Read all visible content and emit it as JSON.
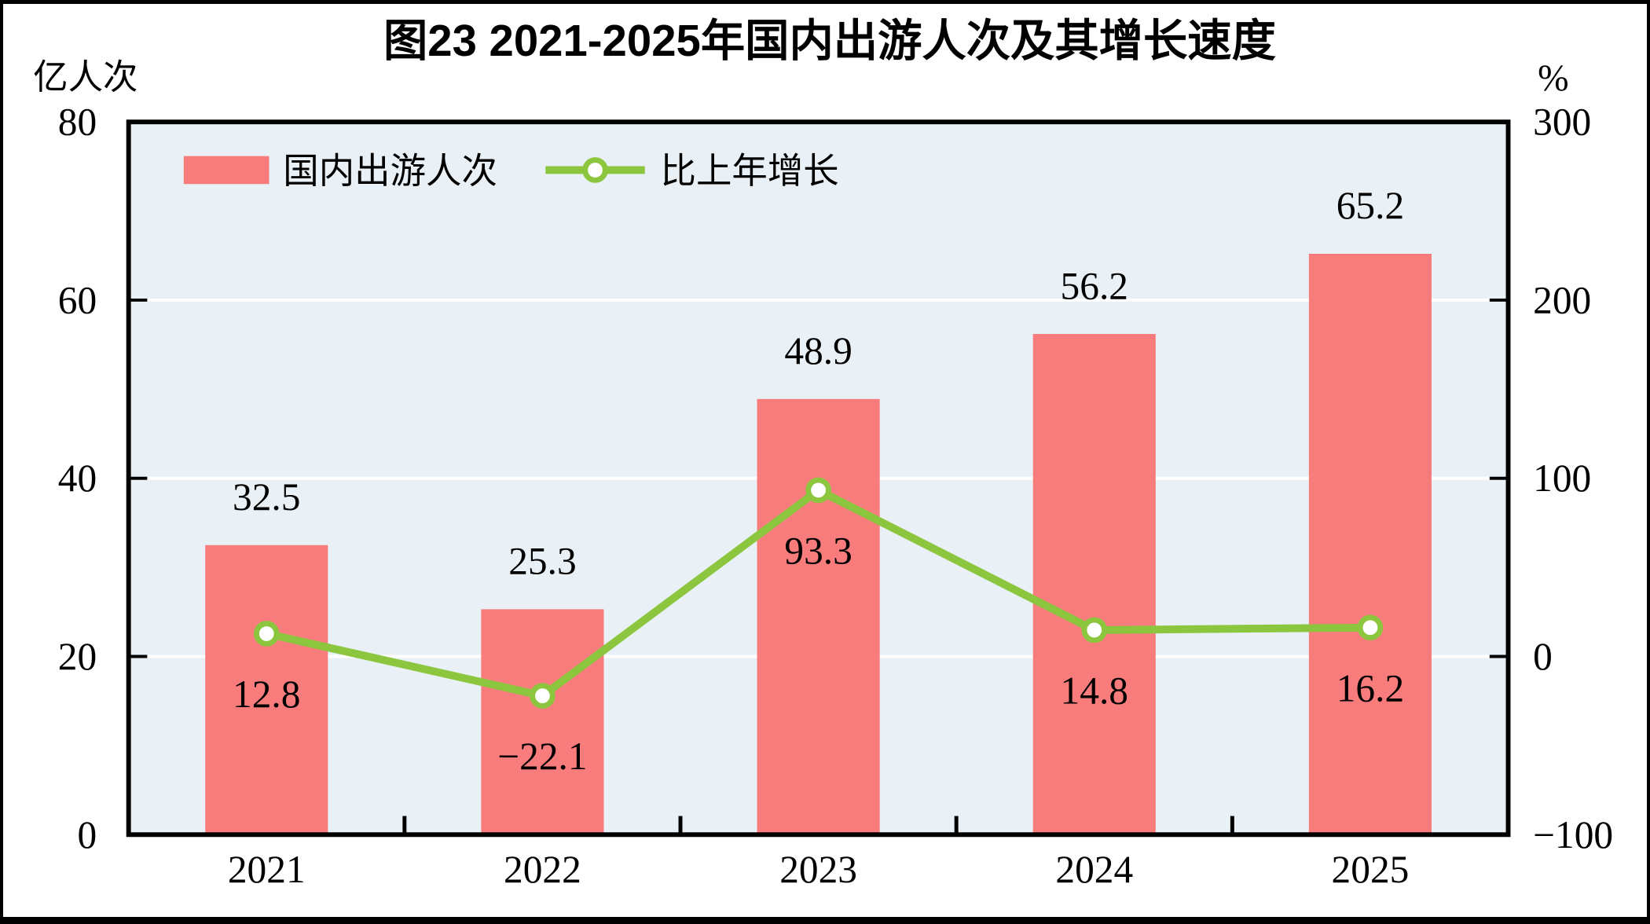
{
  "chart_data": {
    "type": "bar+line",
    "title": "图23  2021-2025年国内出游人次及其增长速度",
    "plot_bg": "#E9F1F6",
    "grid_color": "#FFFFFF",
    "frame_color": "#000000",
    "legend_position": "top-left",
    "categories": [
      "2021",
      "2022",
      "2023",
      "2024",
      "2025"
    ],
    "left_axis": {
      "unit": "亿人次",
      "min": 0,
      "max": 80,
      "ticks": [
        {
          "v": 80,
          "label": "80"
        },
        {
          "v": 60,
          "label": "60"
        },
        {
          "v": 40,
          "label": "40"
        },
        {
          "v": 20,
          "label": "20"
        },
        {
          "v": 0,
          "label": "0"
        }
      ],
      "grid_values": [
        60,
        40,
        20
      ]
    },
    "right_axis": {
      "unit": "%",
      "min": -100,
      "max": 300,
      "ticks": [
        {
          "v": 300,
          "label": "300"
        },
        {
          "v": 200,
          "label": "200"
        },
        {
          "v": 100,
          "label": "100"
        },
        {
          "v": 0,
          "label": "0"
        },
        {
          "v": -100,
          "label": "−100"
        }
      ],
      "inner_tick_values": [
        200,
        100,
        0
      ]
    },
    "series": [
      {
        "name": "国内出游人次",
        "type": "bar",
        "axis": "left",
        "color": "#F87C7C",
        "values": [
          32.5,
          25.3,
          48.9,
          56.2,
          65.2
        ],
        "value_labels": [
          "32.5",
          "25.3",
          "48.9",
          "56.2",
          "65.2"
        ]
      },
      {
        "name": "比上年增长",
        "type": "line",
        "axis": "right",
        "color": "#8CC63F",
        "marker_fill": "#FFFFFF",
        "values": [
          12.8,
          -22.1,
          93.3,
          14.8,
          16.2
        ],
        "value_labels": [
          "12.8",
          "−22.1",
          "93.3",
          "14.8",
          "16.2"
        ]
      }
    ]
  }
}
